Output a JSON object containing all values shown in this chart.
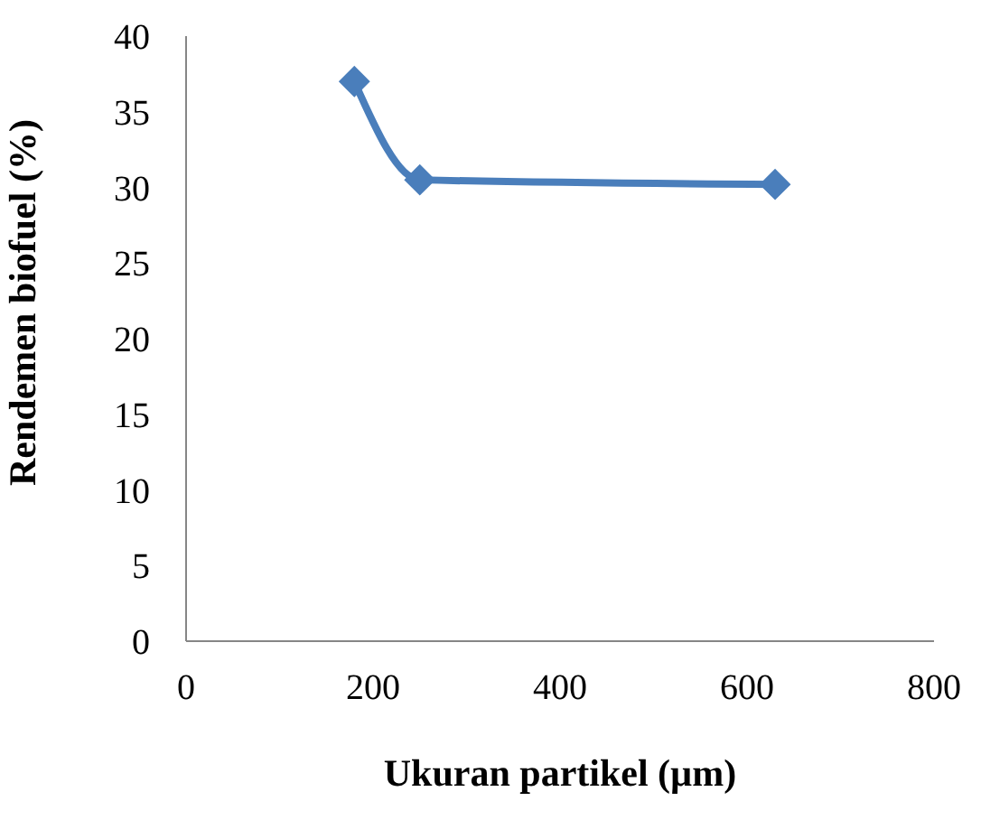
{
  "chart_data": {
    "type": "line",
    "xlabel": "Ukuran partikel (µm)",
    "ylabel": "Rendemen biofuel (%)",
    "x": [
      180,
      250,
      630
    ],
    "series": [
      {
        "color": "#4a7ebb",
        "values": [
          37,
          30.5,
          30.2
        ]
      }
    ],
    "xlim": [
      0,
      800
    ],
    "xticks": [
      0,
      200,
      400,
      600,
      800
    ],
    "ylim": [
      0,
      40
    ],
    "yticks": [
      0,
      5,
      10,
      15,
      20,
      25,
      30,
      35,
      40
    ],
    "marker": "diamond",
    "line_style": "solid"
  }
}
